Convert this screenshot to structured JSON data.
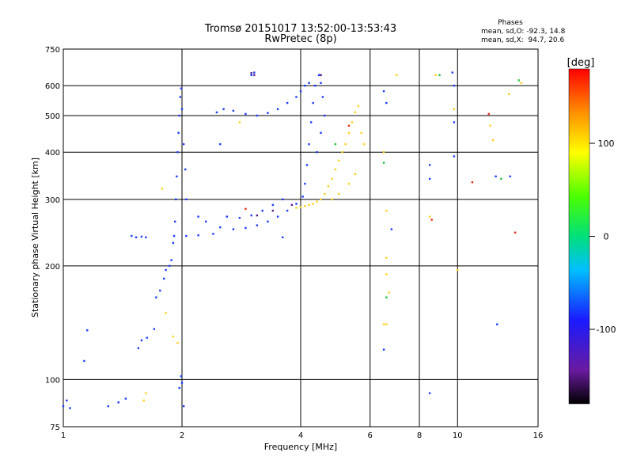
{
  "chart_data": {
    "type": "scatter",
    "title": "Tromsø 20151017 13:52:00-13:53:43",
    "subtitle": "RwPretec (8p)",
    "xlabel": "Frequency [MHz]",
    "ylabel": "Stationary phase Virtual Height [km]",
    "x_scale": "log",
    "y_scale": "log",
    "xlim": [
      1,
      16
    ],
    "ylim": [
      75,
      750
    ],
    "x_ticks": [
      1,
      2,
      4,
      6,
      8,
      10,
      16
    ],
    "x_tick_labels": [
      "1",
      "2",
      "4",
      "6",
      "8",
      "10",
      "16"
    ],
    "y_ticks": [
      75,
      100,
      200,
      300,
      400,
      500,
      600,
      750
    ],
    "y_tick_labels": [
      "75",
      "100",
      "200",
      "300",
      "400",
      "500",
      "600",
      "750"
    ],
    "grid": true,
    "stats_block": {
      "title": "Phases",
      "line1": "mean, sd,O: -92.3, 14.8",
      "line2": "mean, sd,X:  94.7, 20.6"
    },
    "colorbar": {
      "label": "[deg]",
      "range": [
        -180,
        180
      ],
      "ticks": [
        100,
        0,
        -100
      ],
      "tick_labels": [
        "100",
        "0",
        "-100"
      ],
      "colormap": "rainbow: black-purple-blue-cyan-green-yellow-orange-red"
    },
    "series": [
      {
        "trace": "F-region low-frequency trace (blue)",
        "color": "#1a3cff",
        "points": [
          [
            1.0,
            85
          ],
          [
            1.02,
            88
          ],
          [
            1.04,
            84
          ],
          [
            1.13,
            112
          ],
          [
            1.15,
            135
          ],
          [
            1.3,
            85
          ],
          [
            1.38,
            87
          ],
          [
            1.44,
            89
          ],
          [
            1.49,
            240
          ],
          [
            1.53,
            238
          ],
          [
            1.58,
            239
          ],
          [
            1.62,
            238
          ],
          [
            1.55,
            121
          ],
          [
            1.58,
            127
          ],
          [
            1.63,
            129
          ],
          [
            1.7,
            136
          ],
          [
            1.72,
            165
          ],
          [
            1.76,
            172
          ],
          [
            1.8,
            185
          ],
          [
            1.82,
            195
          ],
          [
            1.86,
            200
          ],
          [
            1.88,
            207
          ],
          [
            1.9,
            230
          ],
          [
            1.91,
            240
          ],
          [
            1.92,
            262
          ],
          [
            1.93,
            300
          ],
          [
            1.94,
            345
          ],
          [
            1.95,
            400
          ],
          [
            1.96,
            450
          ],
          [
            1.97,
            500
          ],
          [
            1.98,
            560
          ],
          [
            1.99,
            590
          ],
          [
            2.0,
            520
          ],
          [
            2.02,
            420
          ],
          [
            2.04,
            360
          ],
          [
            2.05,
            300
          ],
          [
            1.97,
            95
          ],
          [
            2.0,
            98
          ],
          [
            2.02,
            85
          ],
          [
            1.99,
            102
          ],
          [
            2.05,
            240
          ],
          [
            2.2,
            241
          ],
          [
            2.4,
            243
          ],
          [
            2.2,
            270
          ],
          [
            2.3,
            262
          ],
          [
            2.5,
            253
          ],
          [
            2.7,
            250
          ],
          [
            2.9,
            252
          ],
          [
            3.1,
            256
          ],
          [
            3.3,
            262
          ],
          [
            3.5,
            270
          ],
          [
            3.7,
            280
          ],
          [
            3.9,
            292
          ],
          [
            4.05,
            305
          ],
          [
            4.1,
            330
          ],
          [
            4.15,
            370
          ],
          [
            4.2,
            420
          ],
          [
            4.25,
            480
          ],
          [
            4.3,
            540
          ],
          [
            4.35,
            600
          ],
          [
            4.45,
            640
          ],
          [
            4.5,
            610
          ],
          [
            4.55,
            560
          ],
          [
            4.6,
            500
          ],
          [
            4.5,
            450
          ],
          [
            4.4,
            400
          ],
          [
            2.6,
            270
          ],
          [
            2.8,
            268
          ],
          [
            3.0,
            272
          ],
          [
            3.2,
            280
          ],
          [
            3.4,
            290
          ],
          [
            3.6,
            300
          ],
          [
            2.45,
            510
          ],
          [
            2.55,
            520
          ],
          [
            2.7,
            515
          ],
          [
            2.9,
            505
          ],
          [
            3.1,
            500
          ],
          [
            3.3,
            508
          ],
          [
            3.5,
            520
          ],
          [
            3.7,
            540
          ],
          [
            3.9,
            560
          ],
          [
            4.0,
            580
          ],
          [
            4.1,
            600
          ],
          [
            4.2,
            610
          ],
          [
            3.0,
            640
          ],
          [
            3.05,
            650
          ],
          [
            2.5,
            420
          ],
          [
            3.6,
            238
          ],
          [
            6.5,
            580
          ],
          [
            6.6,
            540
          ],
          [
            6.8,
            250
          ],
          [
            8.5,
            370
          ],
          [
            8.5,
            340
          ],
          [
            9.8,
            480
          ],
          [
            9.8,
            390
          ],
          [
            9.7,
            650
          ],
          [
            9.8,
            600
          ],
          [
            12.5,
            345
          ],
          [
            13.6,
            345
          ],
          [
            12.6,
            140
          ],
          [
            8.5,
            92
          ],
          [
            6.5,
            120
          ]
        ]
      },
      {
        "trace": "X-mode high-frequency trace (yellow/orange)",
        "color": "#ffd21a",
        "points": [
          [
            3.9,
            285
          ],
          [
            4.0,
            286
          ],
          [
            4.1,
            288
          ],
          [
            4.2,
            290
          ],
          [
            4.3,
            292
          ],
          [
            4.4,
            296
          ],
          [
            4.5,
            300
          ],
          [
            4.6,
            310
          ],
          [
            4.7,
            325
          ],
          [
            4.8,
            340
          ],
          [
            4.9,
            360
          ],
          [
            5.0,
            380
          ],
          [
            5.1,
            400
          ],
          [
            5.2,
            420
          ],
          [
            5.3,
            450
          ],
          [
            5.4,
            480
          ],
          [
            5.5,
            510
          ],
          [
            5.6,
            530
          ],
          [
            5.7,
            450
          ],
          [
            5.8,
            420
          ],
          [
            5.5,
            350
          ],
          [
            5.3,
            330
          ],
          [
            5.0,
            310
          ],
          [
            4.8,
            300
          ],
          [
            6.5,
            400
          ],
          [
            6.6,
            280
          ],
          [
            6.6,
            210
          ],
          [
            6.6,
            190
          ],
          [
            6.7,
            170
          ],
          [
            6.5,
            140
          ],
          [
            7.0,
            640
          ],
          [
            8.8,
            640
          ],
          [
            9.8,
            520
          ],
          [
            12.1,
            470
          ],
          [
            12.3,
            430
          ],
          [
            13.5,
            570
          ],
          [
            14.5,
            610
          ],
          [
            10.0,
            195
          ],
          [
            8.5,
            270
          ],
          [
            1.6,
            88
          ],
          [
            1.62,
            92
          ],
          [
            1.78,
            320
          ],
          [
            1.9,
            130
          ],
          [
            1.95,
            125
          ],
          [
            1.82,
            150
          ],
          [
            2.8,
            480
          ],
          [
            6.6,
            140
          ]
        ]
      },
      {
        "trace": "Scattered green points",
        "color": "#22c43c",
        "points": [
          [
            6.5,
            375
          ],
          [
            6.6,
            165
          ],
          [
            9.0,
            640
          ],
          [
            12.9,
            340
          ],
          [
            14.3,
            620
          ],
          [
            4.9,
            420
          ]
        ]
      },
      {
        "trace": "Scattered red/orange points",
        "color": "#e82a14",
        "points": [
          [
            2.9,
            283
          ],
          [
            10.9,
            333
          ],
          [
            12.0,
            505
          ],
          [
            14.0,
            245
          ],
          [
            8.6,
            265
          ],
          [
            5.3,
            470
          ]
        ]
      },
      {
        "trace": "Dark purple points",
        "color": "#551a8b",
        "points": [
          [
            3.0,
            648
          ],
          [
            3.05,
            640
          ],
          [
            3.8,
            290
          ],
          [
            3.4,
            280
          ],
          [
            3.1,
            272
          ],
          [
            4.5,
            640
          ]
        ]
      }
    ]
  }
}
